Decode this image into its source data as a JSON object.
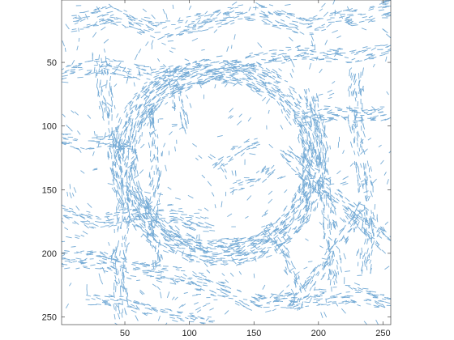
{
  "chart_data": {
    "type": "quiver",
    "title": "",
    "xlabel": "",
    "ylabel": "",
    "xlim": [
      1,
      256
    ],
    "ylim": [
      256,
      1
    ],
    "y_direction": "reversed",
    "x_ticks": [
      50,
      100,
      150,
      200,
      250
    ],
    "y_ticks": [
      50,
      100,
      150,
      200,
      250
    ],
    "x_tick_labels": [
      "50",
      "100",
      "150",
      "200",
      "250"
    ],
    "y_tick_labels": [
      "50",
      "100",
      "150",
      "200",
      "250"
    ],
    "grid": false,
    "box": true,
    "legend": "none",
    "series_color": "#4a90c8",
    "bands": [
      {
        "kind": "ring",
        "cx": 123,
        "cy": 128,
        "rx": 74,
        "ry": 72,
        "width": 20
      },
      {
        "kind": "line",
        "points": [
          [
            8,
            20
          ],
          [
            40,
            12
          ],
          [
            75,
            25
          ],
          [
            110,
            18
          ],
          [
            150,
            10
          ],
          [
            190,
            22
          ],
          [
            230,
            14
          ],
          [
            255,
            8
          ]
        ],
        "width": 14
      },
      {
        "kind": "line",
        "points": [
          [
            0,
            60
          ],
          [
            35,
            52
          ],
          [
            70,
            60
          ],
          [
            105,
            55
          ]
        ],
        "width": 12
      },
      {
        "kind": "line",
        "points": [
          [
            110,
            60
          ],
          [
            150,
            48
          ],
          [
            190,
            42
          ],
          [
            225,
            45
          ],
          [
            256,
            38
          ]
        ],
        "width": 12
      },
      {
        "kind": "line",
        "points": [
          [
            180,
            95
          ],
          [
            210,
            90
          ],
          [
            240,
            92
          ],
          [
            256,
            88
          ]
        ],
        "width": 12
      },
      {
        "kind": "line",
        "points": [
          [
            30,
            40
          ],
          [
            35,
            80
          ],
          [
            42,
            120
          ],
          [
            50,
            160
          ],
          [
            45,
            200
          ],
          [
            48,
            250
          ]
        ],
        "width": 12
      },
      {
        "kind": "line",
        "points": [
          [
            70,
            85
          ],
          [
            75,
            130
          ],
          [
            70,
            175
          ],
          [
            75,
            210
          ]
        ],
        "width": 10
      },
      {
        "kind": "line",
        "points": [
          [
            0,
            110
          ],
          [
            20,
            115
          ],
          [
            40,
            112
          ],
          [
            60,
            118
          ]
        ],
        "width": 10
      },
      {
        "kind": "line",
        "points": [
          [
            0,
            168
          ],
          [
            30,
            175
          ],
          [
            60,
            168
          ],
          [
            90,
            172
          ],
          [
            120,
            180
          ]
        ],
        "width": 12
      },
      {
        "kind": "line",
        "points": [
          [
            0,
            205
          ],
          [
            30,
            205
          ],
          [
            60,
            215
          ],
          [
            95,
            218
          ],
          [
            125,
            228
          ],
          [
            155,
            240
          ],
          [
            190,
            236
          ],
          [
            225,
            232
          ],
          [
            256,
            240
          ]
        ],
        "width": 14
      },
      {
        "kind": "line",
        "points": [
          [
            20,
            235
          ],
          [
            55,
            240
          ],
          [
            90,
            250
          ],
          [
            120,
            256
          ]
        ],
        "width": 10
      },
      {
        "kind": "line",
        "points": [
          [
            175,
            120
          ],
          [
            205,
            150
          ],
          [
            235,
            175
          ],
          [
            256,
            195
          ]
        ],
        "width": 14
      },
      {
        "kind": "line",
        "points": [
          [
            195,
            70
          ],
          [
            200,
            110
          ],
          [
            205,
            150
          ],
          [
            210,
            190
          ],
          [
            215,
            225
          ]
        ],
        "width": 12
      },
      {
        "kind": "line",
        "points": [
          [
            230,
            55
          ],
          [
            228,
            95
          ],
          [
            235,
            135
          ],
          [
            240,
            175
          ],
          [
            236,
            215
          ]
        ],
        "width": 12
      },
      {
        "kind": "line",
        "points": [
          [
            240,
            155
          ],
          [
            220,
            185
          ],
          [
            200,
            215
          ],
          [
            180,
            245
          ]
        ],
        "width": 10
      },
      {
        "kind": "line",
        "points": [
          [
            160,
            180
          ],
          [
            175,
            205
          ],
          [
            185,
            230
          ]
        ],
        "width": 10
      },
      {
        "kind": "line",
        "points": [
          [
            120,
            132
          ],
          [
            140,
            118
          ],
          [
            155,
            112
          ]
        ],
        "width": 9
      },
      {
        "kind": "line",
        "points": [
          [
            130,
            148
          ],
          [
            150,
            144
          ],
          [
            165,
            132
          ]
        ],
        "width": 9
      },
      {
        "kind": "line",
        "points": [
          [
            85,
            55
          ],
          [
            92,
            85
          ],
          [
            100,
            105
          ]
        ],
        "width": 8
      }
    ]
  }
}
